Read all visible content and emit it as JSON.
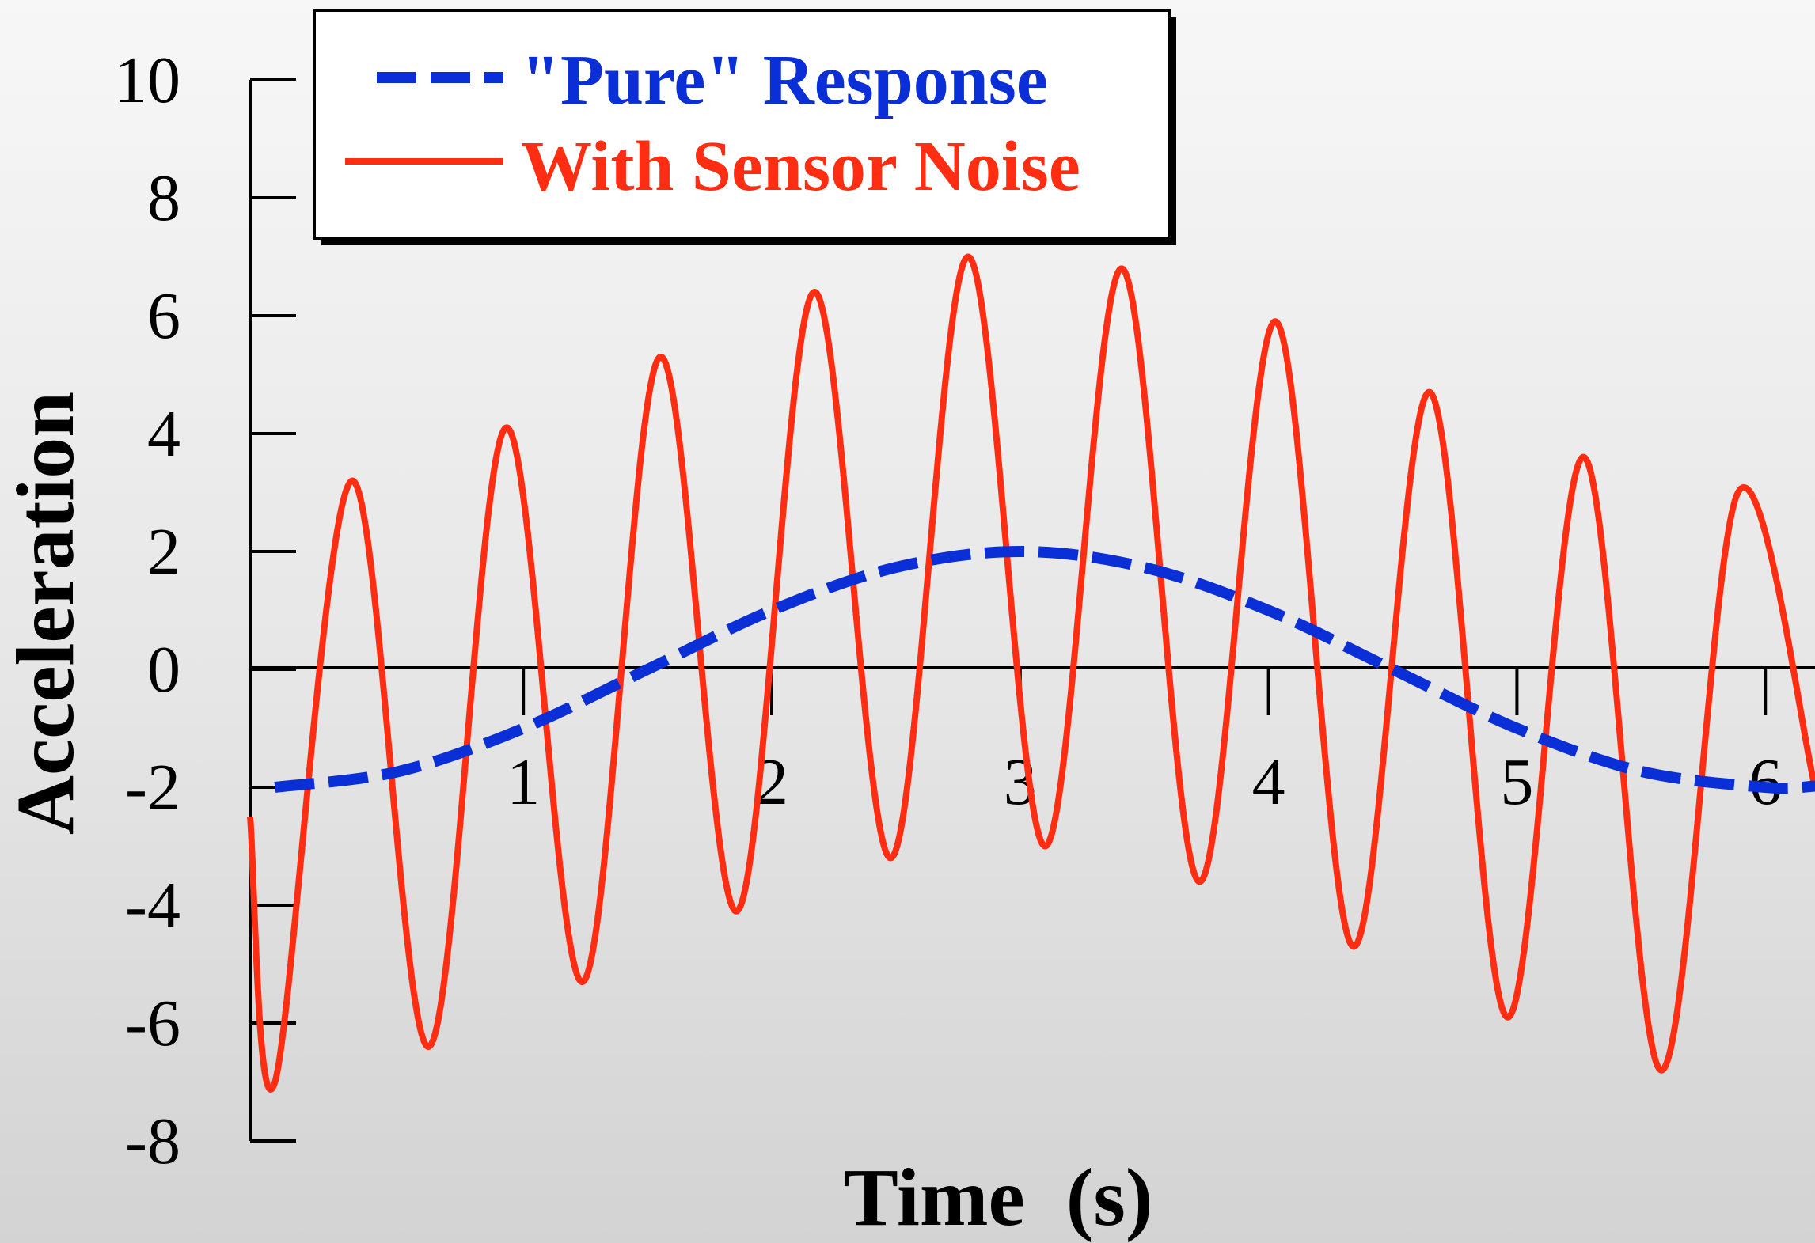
{
  "chart_data": {
    "type": "line",
    "title": "",
    "xlabel": "Time  (s)",
    "ylabel": "Acceleration",
    "xlim": [
      -0.1,
      6.2
    ],
    "ylim": [
      -8,
      10
    ],
    "xticks": [
      1,
      2,
      3,
      4,
      5,
      6
    ],
    "yticks": [
      10,
      8,
      6,
      4,
      2,
      0,
      -2,
      -4,
      -6,
      -8
    ],
    "grid": false,
    "legend_position": "top-left",
    "series": [
      {
        "name": "\"Pure\" Response",
        "style": "dashed",
        "color": "#0a2fd6",
        "x": [
          0.0,
          0.5,
          1.0,
          1.5,
          2.0,
          2.5,
          3.0,
          3.5,
          4.0,
          4.5,
          5.0,
          5.5,
          6.0,
          6.2
        ],
        "values": [
          -2.0,
          -1.73,
          -1.0,
          0.0,
          1.0,
          1.73,
          2.0,
          1.73,
          1.0,
          0.0,
          -1.0,
          -1.73,
          -2.0,
          -1.98
        ]
      },
      {
        "name": "With Sensor Noise",
        "style": "solid",
        "color": "#ff2d12",
        "x": [
          -0.1,
          0.0,
          0.31,
          0.62,
          0.93,
          1.24,
          1.55,
          1.86,
          2.17,
          2.48,
          2.79,
          3.1,
          3.41,
          3.72,
          4.03,
          4.34,
          4.65,
          4.96,
          5.27,
          5.58,
          5.89,
          6.2
        ],
        "values": [
          -2.5,
          -7.0,
          3.2,
          -6.4,
          4.1,
          -5.3,
          5.3,
          -4.1,
          6.4,
          -3.2,
          7.0,
          -3.0,
          6.8,
          -3.6,
          5.9,
          -4.7,
          4.7,
          -5.9,
          3.6,
          -6.8,
          3.0,
          -2.0
        ]
      }
    ]
  }
}
